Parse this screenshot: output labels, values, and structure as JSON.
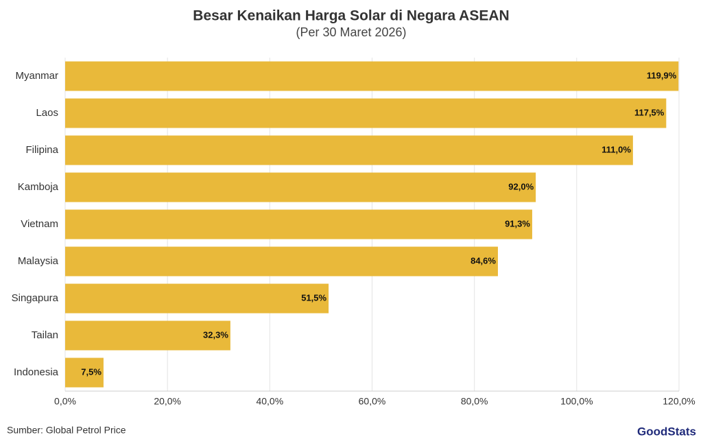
{
  "chart_data": {
    "type": "bar",
    "orientation": "horizontal",
    "title": "Besar Kenaikan Harga Solar di Negara ASEAN",
    "subtitle": "(Per 30 Maret 2026)",
    "categories": [
      "Myanmar",
      "Laos",
      "Filipina",
      "Kamboja",
      "Vietnam",
      "Malaysia",
      "Singapura",
      "Tailan",
      "Indonesia"
    ],
    "values": [
      119.9,
      117.5,
      111.0,
      92.0,
      91.3,
      84.6,
      51.5,
      32.3,
      7.5
    ],
    "value_labels": [
      "119,9%",
      "117,5%",
      "111,0%",
      "92,0%",
      "91,3%",
      "84,6%",
      "51,5%",
      "32,3%",
      "7,5%"
    ],
    "color": "#e9b93a",
    "xlim": [
      0,
      120
    ],
    "xticks": [
      {
        "value": 0,
        "label": "0,0%"
      },
      {
        "value": 20,
        "label": "20,0%"
      },
      {
        "value": 40,
        "label": "40,0%"
      },
      {
        "value": 60,
        "label": "60,0%"
      },
      {
        "value": 80,
        "label": "80,0%"
      },
      {
        "value": 100,
        "label": "100,0%"
      },
      {
        "value": 120,
        "label": "120,0%"
      }
    ],
    "grid": true,
    "source": "Sumber: Global Petrol Price",
    "logo": "GoodStats"
  }
}
